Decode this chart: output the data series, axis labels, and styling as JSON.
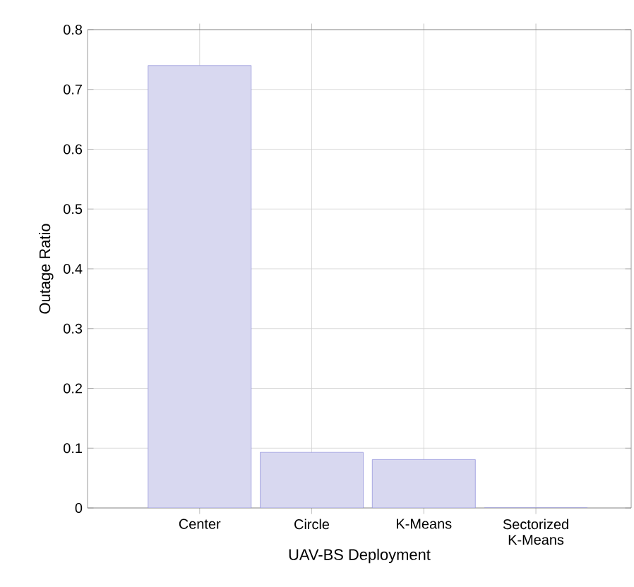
{
  "chart_data": {
    "type": "bar",
    "xlabel": "UAV-BS Deployment",
    "ylabel": "Outage Ratio",
    "categories": [
      "Center",
      "Circle",
      "K-Means",
      "Sectorized K-Means"
    ],
    "values": [
      0.74,
      0.093,
      0.081,
      0
    ],
    "color": "#d8d8f0",
    "ylim": [
      0,
      0.8
    ],
    "yticks": [
      0,
      0.1,
      0.2,
      0.3,
      0.4,
      0.5,
      0.6,
      0.7,
      0.8
    ],
    "grid": true
  }
}
